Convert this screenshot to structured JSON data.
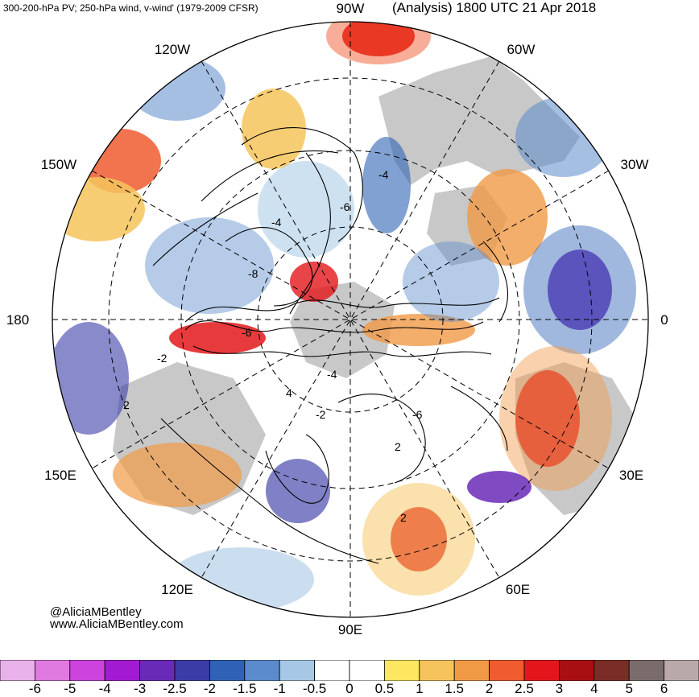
{
  "header": {
    "left": "300-200-hPa PV; 250-hPa wind, v-wind' (1979-2009 CFSR)",
    "right": "(Analysis) 1800 UTC 21 Apr 2018"
  },
  "map": {
    "projection": "north-polar-stereographic",
    "longitude_labels": [
      {
        "text": "90W",
        "lon": -90
      },
      {
        "text": "60W",
        "lon": -60
      },
      {
        "text": "30W",
        "lon": -30
      },
      {
        "text": "0",
        "lon": 0
      },
      {
        "text": "30E",
        "lon": 30
      },
      {
        "text": "60E",
        "lon": 60
      },
      {
        "text": "90E",
        "lon": 90
      },
      {
        "text": "120E",
        "lon": 120
      },
      {
        "text": "150E",
        "lon": 150
      },
      {
        "text": "180",
        "lon": 180
      },
      {
        "text": "150W",
        "lon": -150
      },
      {
        "text": "120W",
        "lon": -120
      }
    ],
    "contour_labels": [
      "-4",
      "-6",
      "-8",
      "-6",
      "-2",
      "2",
      "-4",
      "-2",
      "-6",
      "-4",
      "2",
      "2",
      "4"
    ],
    "colors": {
      "land": "#c8c8c8",
      "ocean": "#ffffff"
    }
  },
  "credits": {
    "line1": "@AliciaMBentley",
    "line2": "www.AliciaMBentley.com"
  },
  "colorbar": {
    "labels": [
      "-6",
      "-5",
      "-4",
      "-3",
      "-2.5",
      "-2",
      "-1.5",
      "-1",
      "-0.5",
      "0",
      "0.5",
      "1",
      "1.5",
      "2",
      "2.5",
      "3",
      "4",
      "5",
      "6"
    ],
    "colors": [
      "#e9b1e9",
      "#e07ae0",
      "#cc44dd",
      "#a21ad2",
      "#6a2ab8",
      "#3b3ca6",
      "#2f62b6",
      "#5b8bcc",
      "#a6c8e6",
      "#ffffff",
      "#ffffff",
      "#fde660",
      "#f6c45c",
      "#f19a46",
      "#ef5c30",
      "#e3171b",
      "#a80f12",
      "#7a2d26",
      "#7b6c6c",
      "#b9a9a9"
    ]
  }
}
